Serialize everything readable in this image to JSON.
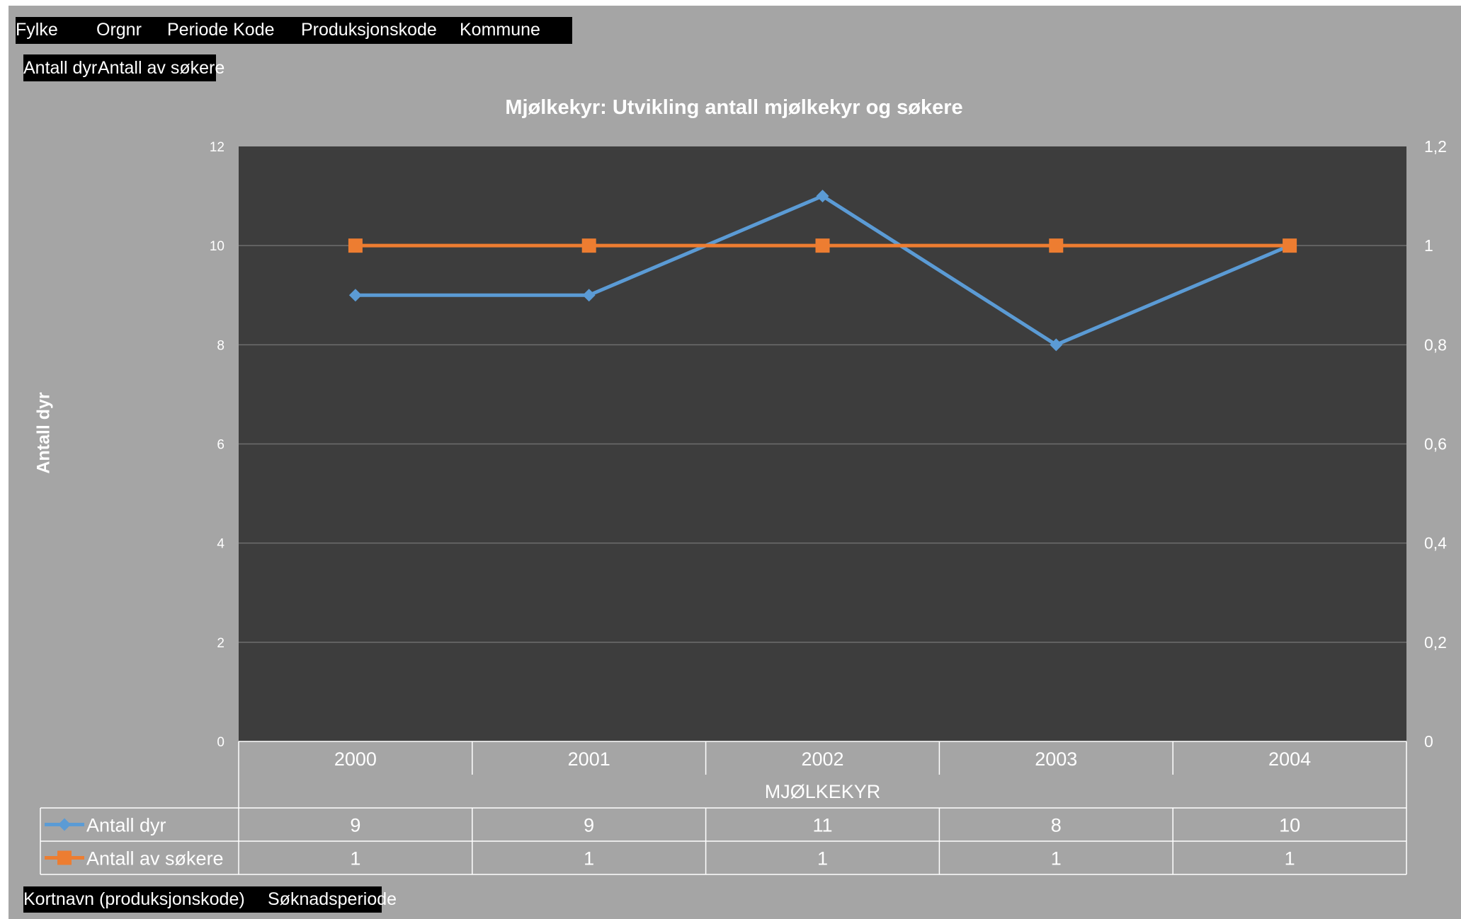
{
  "filters": {
    "items": [
      "Fylke",
      "Orgnr",
      "Periode Kode",
      "Produksjonskode",
      "Kommune"
    ]
  },
  "value_fields": {
    "items": [
      "Antall dyr",
      "Antall av søkere"
    ]
  },
  "axis_fields": {
    "items": [
      "Kortnavn (produksjonskode)",
      "Søknadsperiode"
    ]
  },
  "chart_data": {
    "type": "line",
    "title": "Mjølkekyr: Utvikling antall mjølkekyr og søkere",
    "ylabel": "Antall dyr",
    "ylabel_right": "",
    "category_group": "MJØLKEKYR",
    "categories": [
      "2000",
      "2001",
      "2002",
      "2003",
      "2004"
    ],
    "ylim": [
      0,
      12
    ],
    "y_ticks": [
      "0",
      "2",
      "4",
      "6",
      "8",
      "10",
      "12"
    ],
    "y2lim": [
      0,
      1.2
    ],
    "y2_ticks": [
      "0",
      "0,2",
      "0,4",
      "0,6",
      "0,8",
      "1",
      "1,2"
    ],
    "grid": true,
    "legend": "data-table",
    "series": [
      {
        "name": "Antall dyr",
        "axis": "left",
        "marker": "diamond",
        "color": "#5b9bd5",
        "values": [
          9,
          9,
          11,
          8,
          10
        ]
      },
      {
        "name": "Antall av søkere",
        "axis": "right",
        "marker": "square",
        "color": "#ed7d31",
        "values": [
          1,
          1,
          1,
          1,
          1
        ]
      }
    ],
    "plot_background": "#3d3d3d",
    "frame_background": "#a5a5a5"
  }
}
